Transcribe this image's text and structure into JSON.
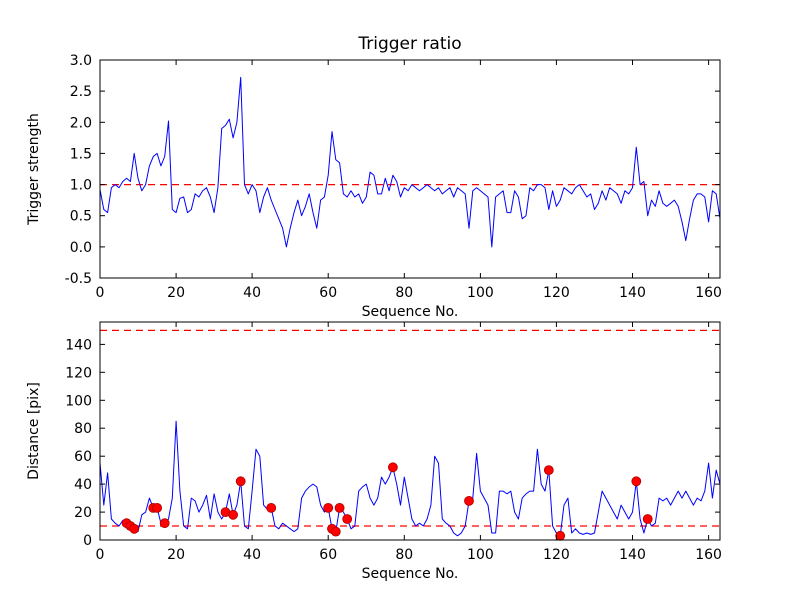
{
  "figure": {
    "background": "#ffffff"
  },
  "colors": {
    "line": "#0000ff",
    "threshold": "#ff0000",
    "marker_fill": "#ff0000",
    "marker_edge": "#aa0000",
    "axis": "#000000"
  },
  "chart_data": [
    {
      "type": "line",
      "title": "Trigger ratio",
      "xlabel": "Sequence No.",
      "ylabel": "Trigger strength",
      "xlim": [
        0,
        163
      ],
      "ylim": [
        -0.5,
        3.0
      ],
      "xticks": [
        0,
        20,
        40,
        60,
        80,
        100,
        120,
        140,
        160
      ],
      "xtick_labels": [
        "0",
        "20",
        "40",
        "60",
        "80",
        "100",
        "120",
        "140",
        "160"
      ],
      "yticks": [
        -0.5,
        0.0,
        0.5,
        1.0,
        1.5,
        2.0,
        2.5,
        3.0
      ],
      "ytick_labels": [
        "-0.5",
        "0.0",
        "0.5",
        "1.0",
        "1.5",
        "2.0",
        "2.5",
        "3.0"
      ],
      "grid": false,
      "legend": "none",
      "threshold_lines": [
        1.0
      ],
      "series": [
        {
          "name": "trigger-strength",
          "color": "#0000ff",
          "values": [
            0.92,
            0.6,
            0.55,
            0.95,
            1.0,
            0.95,
            1.05,
            1.1,
            1.05,
            1.5,
            1.1,
            0.9,
            1.0,
            1.3,
            1.45,
            1.5,
            1.3,
            1.45,
            2.02,
            0.6,
            0.55,
            0.78,
            0.8,
            0.55,
            0.6,
            0.85,
            0.8,
            0.9,
            0.95,
            0.8,
            0.55,
            0.95,
            1.9,
            1.95,
            2.05,
            1.75,
            2.0,
            2.72,
            1.0,
            0.85,
            1.0,
            0.9,
            0.55,
            0.8,
            0.95,
            0.75,
            0.6,
            0.45,
            0.3,
            0.0,
            0.3,
            0.55,
            0.75,
            0.5,
            0.65,
            0.85,
            0.55,
            0.3,
            0.75,
            0.8,
            1.15,
            1.85,
            1.4,
            1.35,
            0.85,
            0.8,
            0.9,
            0.8,
            0.85,
            0.7,
            0.8,
            1.2,
            1.15,
            0.85,
            0.85,
            1.1,
            0.9,
            1.15,
            1.05,
            0.8,
            0.95,
            0.9,
            1.0,
            0.95,
            0.9,
            0.95,
            1.0,
            0.95,
            0.9,
            0.95,
            0.85,
            0.9,
            0.95,
            0.8,
            0.95,
            0.9,
            0.85,
            0.3,
            0.9,
            0.95,
            0.9,
            0.85,
            0.8,
            0.0,
            0.8,
            0.85,
            0.9,
            0.55,
            0.55,
            0.9,
            0.8,
            0.45,
            0.5,
            0.95,
            0.9,
            1.0,
            1.0,
            0.95,
            0.6,
            0.9,
            0.65,
            0.75,
            0.95,
            0.9,
            0.85,
            0.95,
            1.0,
            0.9,
            0.8,
            0.85,
            0.6,
            0.7,
            0.9,
            0.75,
            0.95,
            0.9,
            0.85,
            0.7,
            0.9,
            0.85,
            0.95,
            1.6,
            1.0,
            1.05,
            0.5,
            0.75,
            0.65,
            0.9,
            0.7,
            0.65,
            0.7,
            0.75,
            0.65,
            0.4,
            0.1,
            0.45,
            0.75,
            0.85,
            0.85,
            0.8,
            0.4,
            0.9,
            0.85,
            0.45
          ]
        }
      ]
    },
    {
      "type": "line",
      "title": "",
      "xlabel": "Sequence No.",
      "ylabel": "Distance [pix]",
      "xlim": [
        0,
        163
      ],
      "ylim": [
        0,
        156
      ],
      "xticks": [
        0,
        20,
        40,
        60,
        80,
        100,
        120,
        140,
        160
      ],
      "xtick_labels": [
        "0",
        "20",
        "40",
        "60",
        "80",
        "100",
        "120",
        "140",
        "160"
      ],
      "yticks": [
        0,
        20,
        40,
        60,
        80,
        100,
        120,
        140
      ],
      "ytick_labels": [
        "0",
        "20",
        "40",
        "60",
        "80",
        "100",
        "120",
        "140"
      ],
      "grid": false,
      "legend": "none",
      "threshold_lines": [
        10,
        150
      ],
      "series": [
        {
          "name": "distance",
          "color": "#0000ff",
          "values": [
            55,
            25,
            48,
            15,
            12,
            10,
            14,
            12,
            10,
            8,
            6,
            18,
            20,
            30,
            23,
            23,
            12,
            12,
            15,
            30,
            85,
            35,
            10,
            8,
            30,
            28,
            20,
            25,
            32,
            15,
            33,
            20,
            15,
            20,
            33,
            18,
            25,
            42,
            10,
            8,
            35,
            65,
            60,
            25,
            22,
            23,
            10,
            8,
            12,
            10,
            8,
            6,
            8,
            30,
            35,
            38,
            40,
            38,
            25,
            20,
            23,
            8,
            6,
            23,
            20,
            15,
            8,
            10,
            35,
            38,
            40,
            30,
            25,
            30,
            45,
            40,
            45,
            52,
            40,
            25,
            45,
            30,
            15,
            10,
            12,
            10,
            15,
            25,
            60,
            55,
            15,
            12,
            10,
            5,
            3,
            5,
            10,
            28,
            30,
            62,
            35,
            30,
            25,
            5,
            5,
            35,
            35,
            33,
            35,
            20,
            15,
            30,
            33,
            35,
            35,
            65,
            40,
            35,
            50,
            10,
            5,
            3,
            25,
            30,
            5,
            8,
            5,
            4,
            5,
            4,
            5,
            20,
            35,
            30,
            25,
            20,
            15,
            25,
            20,
            15,
            20,
            42,
            15,
            5,
            15,
            10,
            12,
            30,
            28,
            30,
            25,
            30,
            35,
            30,
            35,
            30,
            25,
            30,
            28,
            35,
            55,
            30,
            50,
            40
          ]
        }
      ],
      "scatter": {
        "name": "trigger-points",
        "color": "#ff0000",
        "points": [
          [
            7,
            12
          ],
          [
            8,
            10
          ],
          [
            9,
            8
          ],
          [
            14,
            23
          ],
          [
            15,
            23
          ],
          [
            17,
            12
          ],
          [
            33,
            20
          ],
          [
            35,
            18
          ],
          [
            37,
            42
          ],
          [
            45,
            23
          ],
          [
            60,
            23
          ],
          [
            61,
            8
          ],
          [
            62,
            6
          ],
          [
            63,
            23
          ],
          [
            65,
            15
          ],
          [
            77,
            52
          ],
          [
            97,
            28
          ],
          [
            118,
            50
          ],
          [
            121,
            3
          ],
          [
            141,
            42
          ],
          [
            144,
            15
          ]
        ]
      }
    }
  ]
}
